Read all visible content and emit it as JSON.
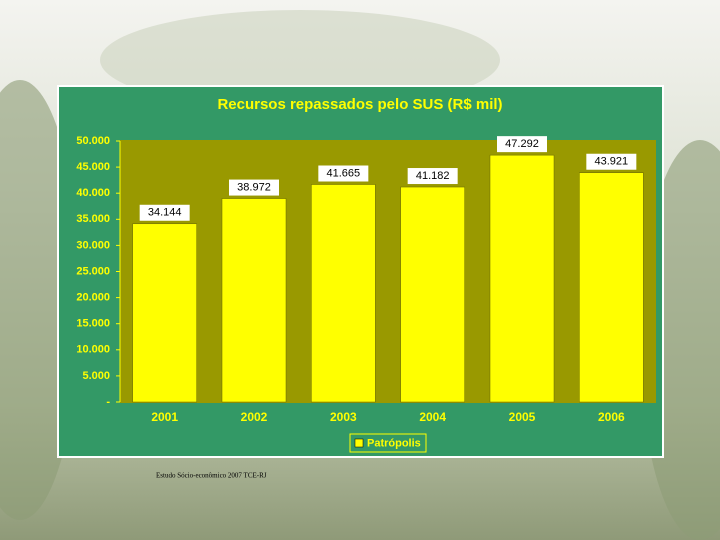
{
  "chart_data": {
    "type": "bar",
    "title": "Recursos repassados pelo SUS (R$ mil)",
    "categories": [
      "2001",
      "2002",
      "2003",
      "2004",
      "2005",
      "2006"
    ],
    "series": [
      {
        "name": "Patrópolis",
        "color": "#ffff00",
        "values": [
          34144,
          38972,
          41665,
          41182,
          47292,
          43921
        ],
        "value_labels": [
          "34.144",
          "38.972",
          "41.665",
          "41.182",
          "47.292",
          "43.921"
        ]
      }
    ],
    "ylim": [
      0,
      50000
    ],
    "yticks": [
      {
        "value": 0,
        "label": "-"
      },
      {
        "value": 5000,
        "label": "5.000"
      },
      {
        "value": 10000,
        "label": "10.000"
      },
      {
        "value": 15000,
        "label": "15.000"
      },
      {
        "value": 20000,
        "label": "20.000"
      },
      {
        "value": 25000,
        "label": "25.000"
      },
      {
        "value": 30000,
        "label": "30.000"
      },
      {
        "value": 35000,
        "label": "35.000"
      },
      {
        "value": 40000,
        "label": "40.000"
      },
      {
        "value": 45000,
        "label": "45.000"
      },
      {
        "value": 50000,
        "label": "50.000"
      }
    ],
    "footnote": "Estudo Sócio-econômico 2007 TCE-RJ"
  }
}
